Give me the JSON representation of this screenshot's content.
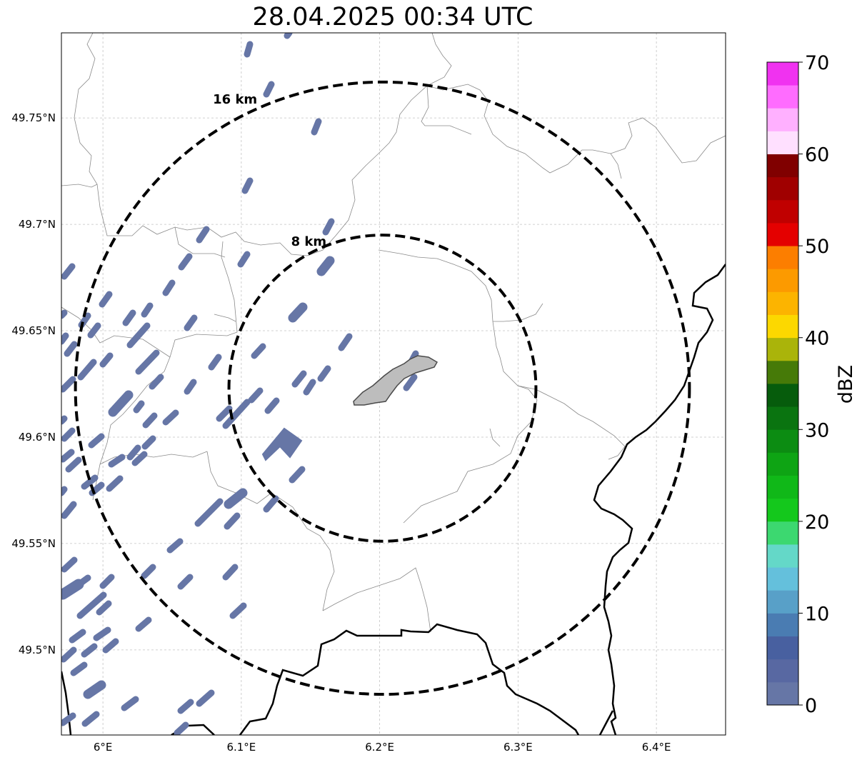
{
  "title": "28.04.2025 00:34 UTC",
  "map": {
    "lon_range": [
      5.97,
      6.45
    ],
    "lat_range": [
      49.46,
      49.79
    ],
    "lat_ticks": [
      {
        "value": 49.5,
        "label": "49.5°N"
      },
      {
        "value": 49.55,
        "label": "49.55°N"
      },
      {
        "value": 49.6,
        "label": "49.6°N"
      },
      {
        "value": 49.65,
        "label": "49.65°N"
      },
      {
        "value": 49.7,
        "label": "49.7°N"
      },
      {
        "value": 49.75,
        "label": "49.75°N"
      }
    ],
    "lon_ticks": [
      {
        "value": 6.0,
        "label": "6°E"
      },
      {
        "value": 6.1,
        "label": "6.1°E"
      },
      {
        "value": 6.2,
        "label": "6.2°E"
      },
      {
        "value": 6.3,
        "label": "6.3°E"
      },
      {
        "value": 6.4,
        "label": "6.4°E"
      }
    ],
    "radar_center": {
      "lon": 6.202,
      "lat": 49.623
    },
    "rings": [
      {
        "radius_km": 8,
        "label": "8 km"
      },
      {
        "radius_km": 16,
        "label": "16 km"
      }
    ],
    "echo_color": "#6676a6",
    "city_fill": "#bdbdbd"
  },
  "colorbar": {
    "label": "dBZ",
    "min": 0,
    "max": 70,
    "ticks": [
      {
        "value": 0,
        "label": "0"
      },
      {
        "value": 10,
        "label": "10"
      },
      {
        "value": 20,
        "label": "20"
      },
      {
        "value": 30,
        "label": "30"
      },
      {
        "value": 40,
        "label": "40"
      },
      {
        "value": 50,
        "label": "50"
      },
      {
        "value": 60,
        "label": "60"
      },
      {
        "value": 70,
        "label": "70"
      }
    ],
    "colors": [
      "#6676a6",
      "#5868a2",
      "#4860a0",
      "#4a7cb2",
      "#58a0c8",
      "#64c0dc",
      "#64d8c8",
      "#3cd870",
      "#14c81c",
      "#10b818",
      "#0ea414",
      "#0c8c12",
      "#0a7410",
      "#065c0c",
      "#467a08",
      "#aab40a",
      "#fcd800",
      "#fcb400",
      "#fc9a00",
      "#fc7e00",
      "#e40000",
      "#c00000",
      "#a00000",
      "#800000",
      "#ffe0ff",
      "#ffb0ff",
      "#ff6cff",
      "#f032f0"
    ]
  }
}
